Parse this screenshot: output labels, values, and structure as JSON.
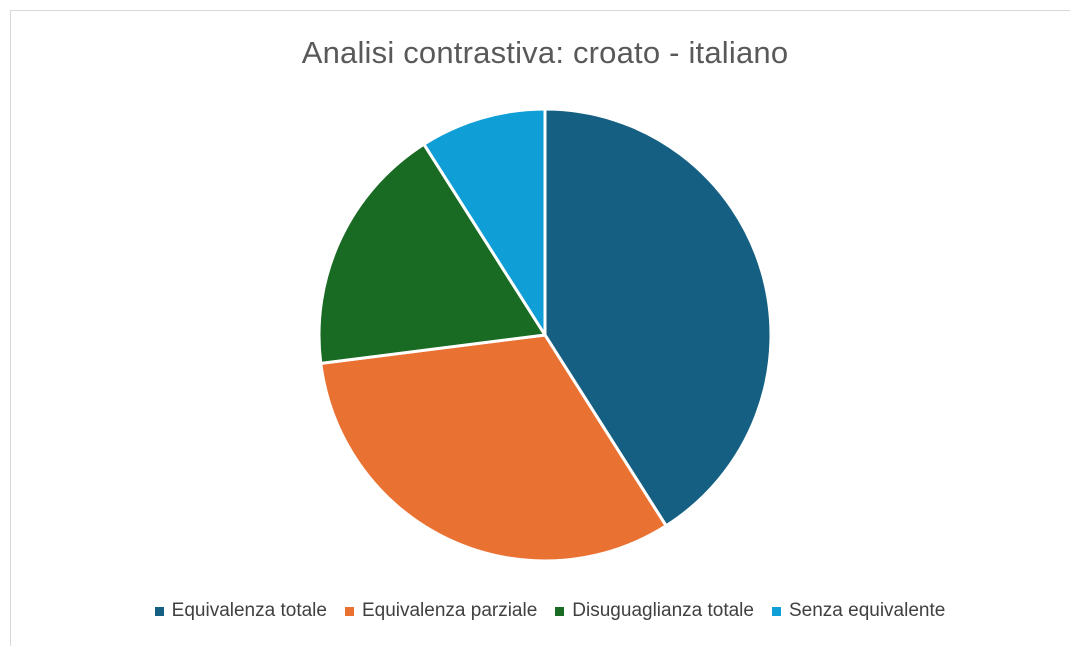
{
  "chart_data": {
    "type": "pie",
    "title": "Analisi contrastiva: croato - italiano",
    "categories": [
      "Equivalenza totale",
      "Equivalenza parziale",
      "Disuguaglianza totale",
      "Senza equivalente"
    ],
    "values": [
      41,
      32,
      18,
      9
    ],
    "colors": [
      "#156082",
      "#E97132",
      "#196B24",
      "#0F9ED5"
    ],
    "start_angle_deg": 0,
    "direction": "clockwise",
    "legend_position": "bottom"
  },
  "legend": {
    "items": [
      {
        "label": "Equivalenza totale",
        "color": "#156082"
      },
      {
        "label": "Equivalenza parziale",
        "color": "#E97132"
      },
      {
        "label": "Disuguaglianza totale",
        "color": "#196B24"
      },
      {
        "label": "Senza equivalente",
        "color": "#0F9ED5"
      }
    ]
  }
}
